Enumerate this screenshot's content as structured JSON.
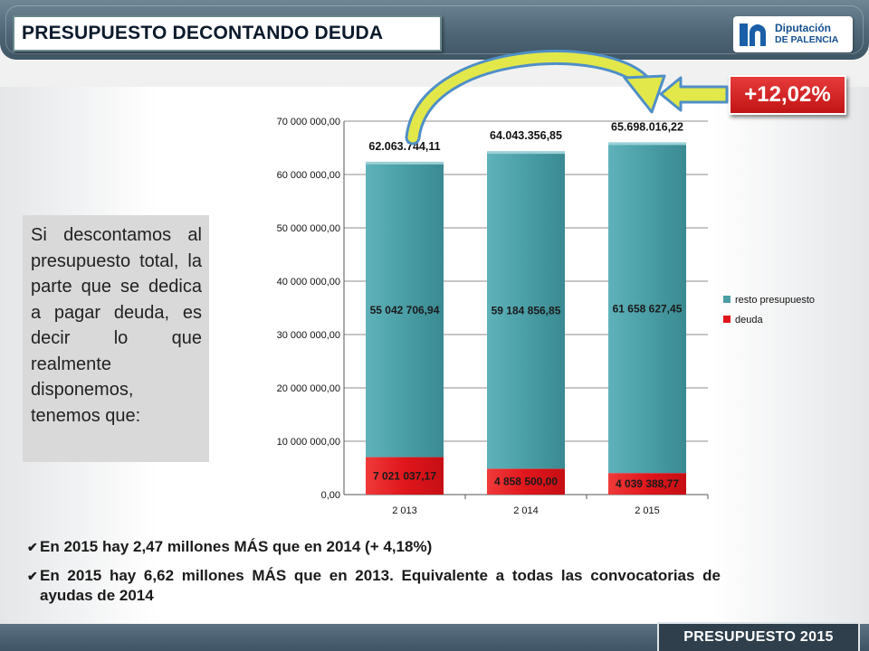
{
  "header": {
    "title": "PRESUPUESTO DECONTANDO DEUDA",
    "logo_line1": "Diputación",
    "logo_line2": "DE PALENCIA"
  },
  "badge": {
    "text": "+12,02%"
  },
  "side_text": "Si descontamos al presupuesto total, la parte que se dedica a pagar deuda, es decir lo que realmente disponemos, tenemos que:",
  "notes": [
    "En 2015 hay 2,47 millones MÁS que en 2014 (+ 4,18%)",
    "En 2015 hay 6,62 millones MÁS que en 2013. Equivalente a todas las convocatorias de ayudas de 2014"
  ],
  "footer": {
    "label": "PRESUPUESTO 2015"
  },
  "colors": {
    "resto": "#4a9ea6",
    "deuda": "#e0161c",
    "badge": "#d42020",
    "arrow_fill": "#e2e84a",
    "arrow_stroke": "#4f8fc7"
  },
  "chart_data": {
    "type": "bar",
    "stacked": true,
    "categories": [
      "2 013",
      "2 014",
      "2 015"
    ],
    "series": [
      {
        "name": "deuda",
        "values": [
          7021037.17,
          4858500.0,
          4039388.77
        ],
        "labels": [
          "7 021 037,17",
          "4 858 500,00",
          "4 039 388,77"
        ]
      },
      {
        "name": "resto presupuesto",
        "values": [
          55042706.94,
          59184856.85,
          61658627.45
        ],
        "labels": [
          "55 042 706,94",
          "59 184 856,85",
          "61 658 627,45"
        ]
      }
    ],
    "totals": [
      "62.063.744,11",
      "64.043.356,85",
      "65.698.016,22"
    ],
    "ylim": [
      0,
      70000000
    ],
    "yticks": [
      0,
      10000000,
      20000000,
      30000000,
      40000000,
      50000000,
      60000000,
      70000000
    ],
    "ytick_labels": [
      "0,00",
      "10 000 000,00",
      "20 000 000,00",
      "30 000 000,00",
      "40 000 000,00",
      "50 000 000,00",
      "60 000 000,00",
      "70 000 000,00"
    ],
    "legend": [
      "resto presupuesto",
      "deuda"
    ],
    "legend_position": "right",
    "grid": true
  }
}
